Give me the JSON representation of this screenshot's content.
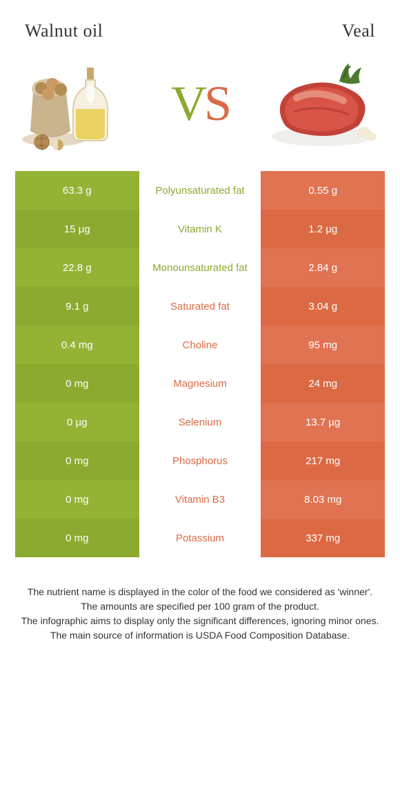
{
  "colors": {
    "left_winner": "#8baa2f",
    "right_winner": "#db6a44",
    "left_bar_shades": [
      "#94b335",
      "#8baa2f"
    ],
    "right_bar_shades": [
      "#e07352",
      "#db6a44"
    ],
    "text_dark": "#333333",
    "white": "#ffffff"
  },
  "titles": {
    "left": "Walnut oil",
    "right": "Veal"
  },
  "vs": {
    "v": "V",
    "s": "S"
  },
  "rows": [
    {
      "left": "63.3 g",
      "label": "Polyunsaturated fat",
      "right": "0.55 g",
      "winner": "left"
    },
    {
      "left": "15 µg",
      "label": "Vitamin K",
      "right": "1.2 µg",
      "winner": "left"
    },
    {
      "left": "22.8 g",
      "label": "Monounsaturated fat",
      "right": "2.84 g",
      "winner": "left"
    },
    {
      "left": "9.1 g",
      "label": "Saturated fat",
      "right": "3.04 g",
      "winner": "right"
    },
    {
      "left": "0.4 mg",
      "label": "Choline",
      "right": "95 mg",
      "winner": "right"
    },
    {
      "left": "0 mg",
      "label": "Magnesium",
      "right": "24 mg",
      "winner": "right"
    },
    {
      "left": "0 µg",
      "label": "Selenium",
      "right": "13.7 µg",
      "winner": "right"
    },
    {
      "left": "0 mg",
      "label": "Phosphorus",
      "right": "217 mg",
      "winner": "right"
    },
    {
      "left": "0 mg",
      "label": "Vitamin B3",
      "right": "8.03 mg",
      "winner": "right"
    },
    {
      "left": "0 mg",
      "label": "Potassium",
      "right": "337 mg",
      "winner": "right"
    }
  ],
  "footnotes": [
    "The nutrient name is displayed in the color of the food we considered as 'winner'.",
    "The amounts are specified per 100 gram of the product.",
    "The infographic aims to display only the significant differences, ignoring minor ones.",
    "The main source of information is USDA Food Composition Database."
  ]
}
